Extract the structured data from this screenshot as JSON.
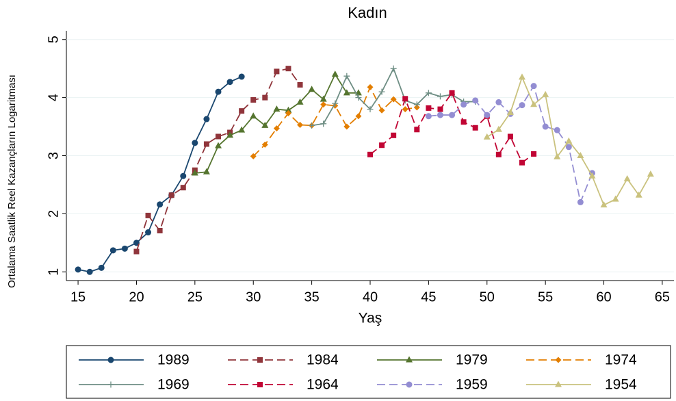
{
  "chart_data": {
    "type": "line",
    "title": "Kadın",
    "xlabel": "Yaş",
    "ylabel": "Ortalama Saatlik Reel Kazançların Logaritması",
    "xlim": [
      14,
      66
    ],
    "xticks": [
      15,
      20,
      25,
      30,
      35,
      40,
      45,
      50,
      55,
      60,
      65
    ],
    "ylim": [
      0.85,
      5.15
    ],
    "yticks": [
      1,
      2,
      3,
      4,
      5
    ],
    "grid": true,
    "legend": "bottom",
    "series": [
      {
        "name": "1989",
        "color": "#1a476f",
        "dashed": false,
        "marker": "circle",
        "x": [
          15,
          16,
          17,
          18,
          19,
          20,
          21,
          22,
          23,
          24,
          25,
          26,
          27,
          28,
          29
        ],
        "values": [
          1.04,
          1.0,
          1.07,
          1.37,
          1.4,
          1.5,
          1.68,
          2.16,
          2.32,
          2.65,
          3.22,
          3.63,
          4.1,
          4.27,
          4.36
        ]
      },
      {
        "name": "1984",
        "color": "#90353b",
        "dashed": true,
        "marker": "square",
        "x": [
          20,
          21,
          22,
          23,
          24,
          25,
          26,
          27,
          28,
          29,
          30,
          31,
          32,
          33,
          34
        ],
        "values": [
          1.35,
          1.97,
          1.71,
          2.32,
          2.45,
          2.75,
          3.2,
          3.33,
          3.4,
          3.77,
          3.96,
          4.0,
          4.45,
          4.5,
          4.22
        ]
      },
      {
        "name": "1979",
        "color": "#55752f",
        "dashed": false,
        "marker": "triangle",
        "x": [
          25,
          26,
          27,
          28,
          29,
          30,
          31,
          32,
          33,
          34,
          35,
          36,
          37,
          38,
          39
        ],
        "values": [
          2.7,
          2.72,
          3.17,
          3.35,
          3.44,
          3.68,
          3.52,
          3.8,
          3.78,
          3.92,
          4.14,
          3.97,
          4.4,
          4.08,
          4.08
        ]
      },
      {
        "name": "1974",
        "color": "#e37e00",
        "dashed": true,
        "marker": "diamond",
        "x": [
          30,
          31,
          32,
          33,
          34,
          35,
          36,
          37,
          38,
          39,
          40,
          41,
          42,
          43,
          44
        ],
        "values": [
          2.99,
          3.19,
          3.47,
          3.73,
          3.53,
          3.52,
          3.88,
          3.86,
          3.5,
          3.68,
          4.18,
          3.78,
          3.97,
          3.8,
          3.83
        ]
      },
      {
        "name": "1969",
        "color": "#6e8e84",
        "dashed": false,
        "marker": "plus",
        "x": [
          35,
          36,
          37,
          38,
          39,
          40,
          41,
          42,
          43,
          44,
          45,
          46,
          47,
          48,
          49
        ],
        "values": [
          3.52,
          3.55,
          3.9,
          4.37,
          4.0,
          3.8,
          4.1,
          4.5,
          3.95,
          3.88,
          4.08,
          4.02,
          4.05,
          3.93,
          3.93
        ]
      },
      {
        "name": "1964",
        "color": "#c10534",
        "dashed": true,
        "marker": "square",
        "x": [
          40,
          41,
          42,
          43,
          44,
          45,
          46,
          47,
          48,
          49,
          50,
          51,
          52,
          53,
          54
        ],
        "values": [
          3.02,
          3.18,
          3.35,
          3.98,
          3.45,
          3.82,
          3.8,
          4.08,
          3.58,
          3.48,
          3.68,
          3.02,
          3.33,
          2.88,
          3.03
        ]
      },
      {
        "name": "1959",
        "color": "#938dd2",
        "dashed": true,
        "marker": "circle",
        "x": [
          45,
          46,
          47,
          48,
          49,
          50,
          51,
          52,
          53,
          54,
          55,
          56,
          57,
          58,
          59
        ],
        "values": [
          3.68,
          3.7,
          3.7,
          3.88,
          3.95,
          3.7,
          3.92,
          3.72,
          3.87,
          4.2,
          3.5,
          3.44,
          3.15,
          2.2,
          2.7
        ]
      },
      {
        "name": "1954",
        "color": "#cac27e",
        "dashed": false,
        "marker": "triangle",
        "x": [
          50,
          51,
          52,
          53,
          54,
          55,
          56,
          57,
          58,
          59,
          60,
          61,
          62,
          63,
          64
        ],
        "values": [
          3.32,
          3.45,
          3.74,
          4.35,
          3.88,
          4.05,
          2.98,
          3.25,
          3.0,
          2.65,
          2.15,
          2.25,
          2.6,
          2.32,
          2.68
        ]
      }
    ]
  }
}
